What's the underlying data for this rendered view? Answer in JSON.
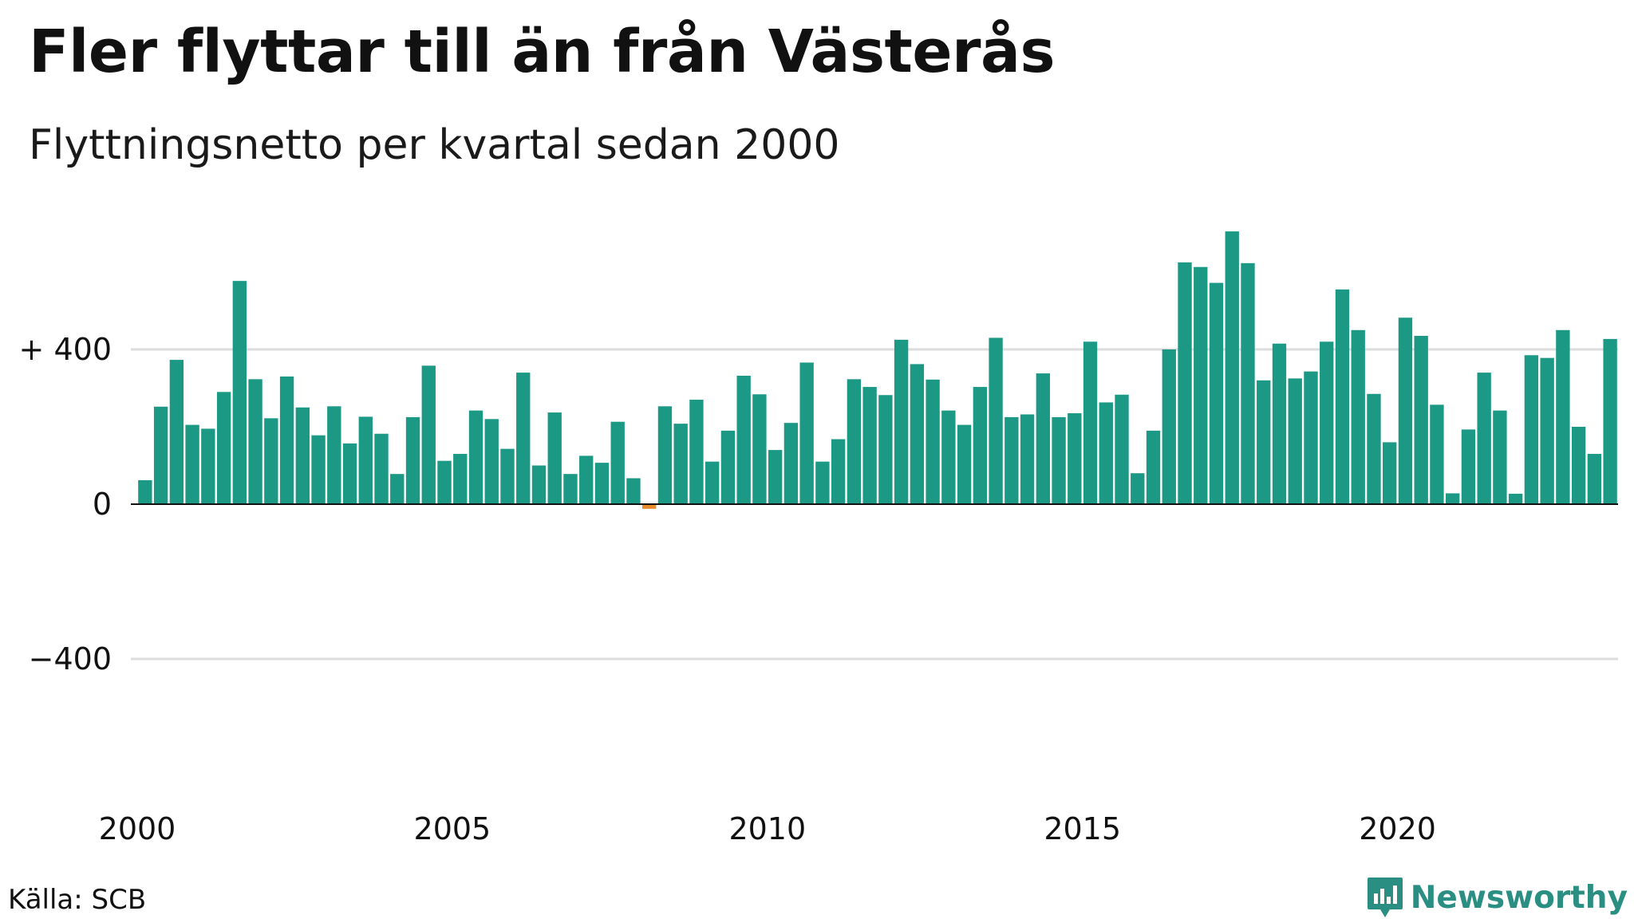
{
  "title": "Fler flyttar till än från Västerås",
  "subtitle": "Flyttningsnetto per kvartal sedan 2000",
  "source": "Källa: SCB",
  "brand": "Newsworthy",
  "colors": {
    "positive": "#1c9985",
    "negative": "#e8892a",
    "grid": "#dddddd",
    "axis": "#111111",
    "brand": "#2a8f82"
  },
  "chart_data": {
    "type": "bar",
    "title": "Fler flyttar till än från Västerås",
    "subtitle": "Flyttningsnetto per kvartal sedan 2000",
    "xlabel": "",
    "ylabel": "",
    "ylim": [
      -720,
      720
    ],
    "xlim": [
      2000,
      2023.75
    ],
    "grid": true,
    "y_ticks": [
      {
        "value": 400,
        "label": "+ 400"
      },
      {
        "value": 0,
        "label": "0"
      },
      {
        "value": -400,
        "label": "−400"
      }
    ],
    "x_ticks": [
      {
        "value": 2000,
        "label": "2000"
      },
      {
        "value": 2005,
        "label": "2005"
      },
      {
        "value": 2010,
        "label": "2010"
      },
      {
        "value": 2015,
        "label": "2015"
      },
      {
        "value": 2020,
        "label": "2020"
      }
    ],
    "series": [
      {
        "start_year": 2000,
        "periods_per_year": 4,
        "values": [
          62,
          252,
          373,
          205,
          195,
          290,
          577,
          323,
          222,
          330,
          250,
          178,
          253,
          157,
          226,
          182,
          78,
          225,
          358,
          112,
          130,
          242,
          220,
          143,
          340,
          100,
          237,
          78,
          125,
          107,
          213,
          67,
          -12,
          253,
          208,
          270,
          110,
          190,
          332,
          284,
          140,
          210,
          366,
          110,
          168,
          323,
          303,
          282,
          425,
          362,
          322,
          242,
          205,
          303,
          430,
          225,
          232,
          338,
          225,
          235,
          420,
          263,
          283,
          80,
          190,
          400,
          625,
          613,
          572,
          705,
          623,
          320,
          415,
          325,
          343,
          420,
          555,
          450,
          285,
          160,
          482,
          435,
          257,
          28,
          193,
          340,
          242,
          27,
          385,
          378,
          450,
          200,
          130,
          427
        ]
      }
    ]
  }
}
